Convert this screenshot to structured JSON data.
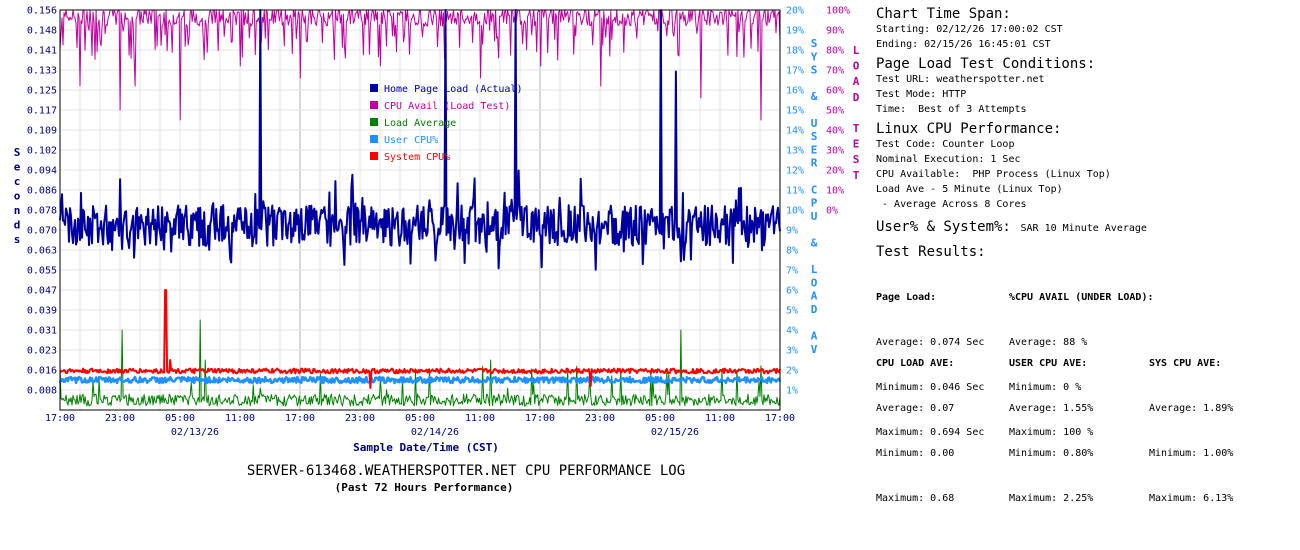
{
  "chart_data": {
    "type": "line",
    "title": "SERVER-613468.WEATHERSPOTTER.NET CPU PERFORMANCE LOG",
    "subtitle": "(Past 72 Hours Performance)",
    "xlabel": "Sample Date/Time (CST)",
    "ylabel_left": "Seconds",
    "ylabel_right_inner": "SYS & USER CPU & LOAD AV",
    "ylabel_right_outer": "LOAD TEST",
    "x_ticks": [
      "17:00",
      "23:00",
      "05:00",
      "11:00",
      "17:00",
      "23:00",
      "05:00",
      "11:00",
      "17:00",
      "23:00",
      "05:00",
      "11:00",
      "17:00"
    ],
    "x_dates": [
      {
        "label": "02/13/26",
        "at": 2.25
      },
      {
        "label": "02/14/26",
        "at": 6.25
      },
      {
        "label": "02/15/26",
        "at": 10.25
      }
    ],
    "y_left_ticks": [
      "0.008",
      "0.016",
      "0.023",
      "0.031",
      "0.039",
      "0.047",
      "0.055",
      "0.063",
      "0.070",
      "0.078",
      "0.086",
      "0.094",
      "0.102",
      "0.109",
      "0.117",
      "0.125",
      "0.133",
      "0.141",
      "0.148",
      "0.156"
    ],
    "y_right_inner_ticks": [
      "1%",
      "2%",
      "3%",
      "4%",
      "5%",
      "6%",
      "7%",
      "8%",
      "9%",
      "10%",
      "11%",
      "12%",
      "13%",
      "14%",
      "15%",
      "16%",
      "17%",
      "18%",
      "19%",
      "20%"
    ],
    "y_right_outer_ticks": [
      "0%",
      "10%",
      "20%",
      "30%",
      "40%",
      "50%",
      "60%",
      "70%",
      "80%",
      "90%",
      "100%"
    ],
    "ylim_left": [
      0,
      0.156
    ],
    "ylim_right_inner": [
      0,
      20
    ],
    "ylim_right_outer": [
      -100,
      100
    ],
    "grid": true,
    "legend_position": "top-center",
    "series": [
      {
        "name": "Home Page Load (Actual)",
        "color": "#0000a0",
        "axis": "left",
        "base": 0.072,
        "spread": 0.008,
        "spikes": [
          [
            200,
            0.156
          ],
          [
            385,
            0.156
          ],
          [
            455,
            0.156
          ],
          [
            600,
            0.156
          ],
          [
            615,
            0.132
          ]
        ]
      },
      {
        "name": "CPU Avail (Load Test)",
        "color": "#c000a0",
        "axis": "outer",
        "base": 95,
        "spread": 4,
        "dips": [
          [
            0,
            80
          ],
          [
            20,
            62
          ],
          [
            60,
            50
          ],
          [
            75,
            62
          ],
          [
            120,
            45
          ],
          [
            180,
            72
          ],
          [
            240,
            66
          ],
          [
            320,
            72
          ],
          [
            420,
            66
          ],
          [
            480,
            72
          ],
          [
            540,
            62
          ],
          [
            600,
            67
          ],
          [
            640,
            56
          ],
          [
            700,
            45
          ]
        ]
      },
      {
        "name": "Load Average",
        "color": "#008000",
        "axis": "inner",
        "base": 0.5,
        "spread": 0.4,
        "spikes": [
          [
            0,
            2.2
          ],
          [
            62,
            4.0
          ],
          [
            140,
            4.5
          ],
          [
            145,
            2.5
          ],
          [
            260,
            1.8
          ],
          [
            320,
            1.6
          ],
          [
            355,
            1.9
          ],
          [
            430,
            2.5
          ],
          [
            560,
            2.0
          ],
          [
            620,
            4.0
          ],
          [
            700,
            2.2
          ],
          [
            720,
            1.7
          ]
        ]
      },
      {
        "name": "User CPU%",
        "color": "#1e90ff",
        "axis": "inner",
        "base": 1.5,
        "spread": 0.15
      },
      {
        "name": "System CPU%",
        "color": "#ff0000",
        "axis": "inner",
        "base": 1.95,
        "spread": 0.12,
        "spikes": [
          [
            105,
            6.0
          ],
          [
            106,
            6.0
          ],
          [
            110,
            2.5
          ],
          [
            310,
            1.1
          ],
          [
            530,
            1.2
          ]
        ]
      }
    ]
  },
  "panel": {
    "span": {
      "heading": "Chart Time Span:",
      "start": "Starting: 02/12/26 17:00:02 CST",
      "end": "Ending: 02/15/26 16:45:01 CST"
    },
    "conditions": {
      "heading": "Page Load Test Conditions:",
      "url": "Test URL: weatherspotter.net",
      "mode": "Test Mode: HTTP",
      "time": "Time:  Best of 3 Attempts"
    },
    "linux": {
      "heading": "Linux CPU Performance:",
      "code": "Test Code: Counter Loop",
      "nominal": "Nominal Execution: 1 Sec",
      "avail": "CPU Available:  PHP Process (Linux Top)",
      "loadave": "Load Ave - 5 Minute (Linux Top)",
      "cores": " - Average Across 8 Cores"
    },
    "usersys": {
      "heading": "User% & System%:",
      "value": "SAR 10 Minute Average"
    },
    "results": {
      "heading": "Test Results:",
      "pageload": {
        "title": "Page Load:",
        "avg": "Average: 0.074 Sec",
        "min": "Minimum: 0.046 Sec",
        "max": "Maximum: 0.694 Sec"
      },
      "cpuavail": {
        "title": "%CPU AVAIL (UNDER LOAD):",
        "avg": "Average: 88 %",
        "min": "Minimum: 0 %",
        "max": "Maximum: 100 %"
      },
      "cpuload": {
        "title": "CPU LOAD AVE:",
        "avg": "Average: 0.07",
        "min": "Minimum: 0.00",
        "max": "Maximum: 0.68"
      },
      "usercpu": {
        "title": "USER CPU AVE:",
        "avg": "Average: 1.55%",
        "min": "Minimum: 0.80%",
        "max": "Maximum: 2.25%"
      },
      "syscpu": {
        "title": "SYS CPU AVE:",
        "avg": "Average: 1.89%",
        "min": "Minimum: 1.00%",
        "max": "Maximum: 6.13%"
      }
    }
  }
}
